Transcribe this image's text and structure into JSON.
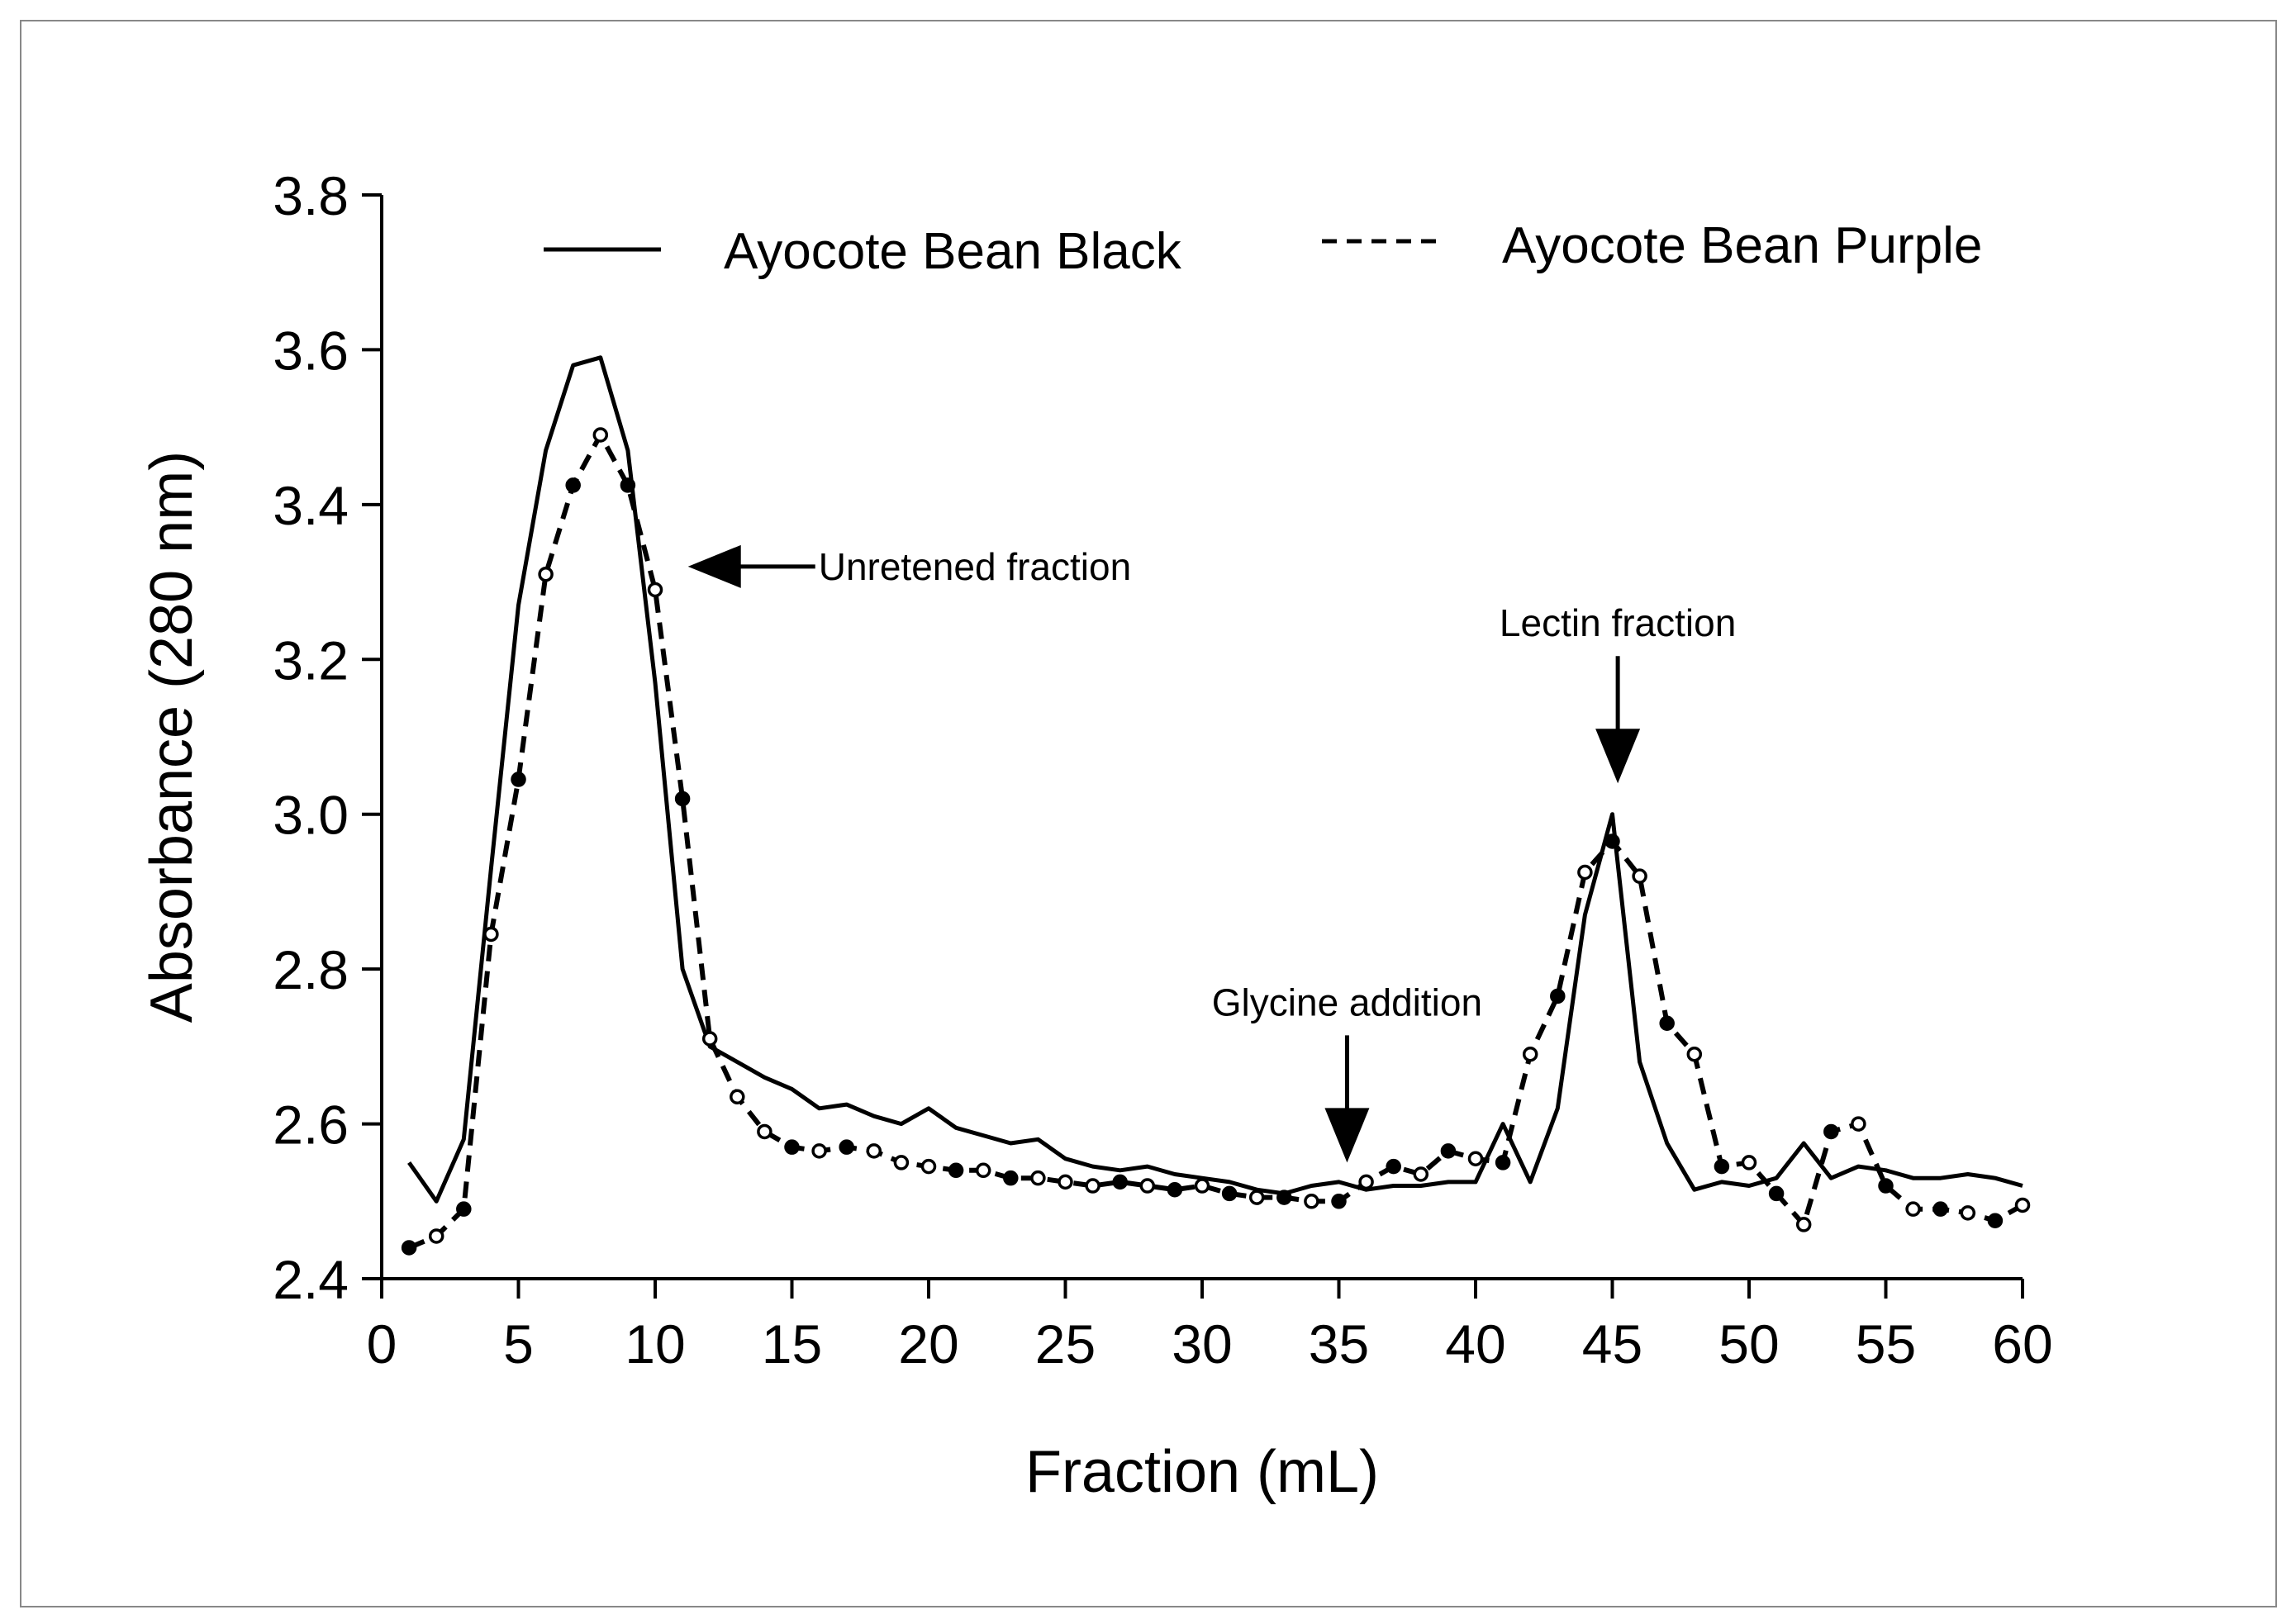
{
  "chart_data": {
    "type": "line",
    "xlabel": "Fraction (mL)",
    "ylabel": "Absorbance (280 nm)",
    "xlim": [
      0,
      60
    ],
    "ylim": [
      2.4,
      3.8
    ],
    "xticks": [
      "0",
      "5",
      "10",
      "15",
      "20",
      "25",
      "30",
      "35",
      "40",
      "45",
      "50",
      "55",
      "60"
    ],
    "yticks": [
      "2.4",
      "2.6",
      "2.8",
      "3.0",
      "3.2",
      "3.4",
      "3.6",
      "3.8"
    ],
    "grid": false,
    "legend_position": "top",
    "series": [
      {
        "name": "Ayocote Bean Black",
        "style": "solid",
        "x": [
          1,
          2,
          3,
          4,
          5,
          6,
          7,
          8,
          9,
          10,
          11,
          12,
          13,
          14,
          15,
          16,
          17,
          18,
          19,
          20,
          21,
          22,
          23,
          24,
          25,
          26,
          27,
          28,
          29,
          30,
          31,
          32,
          33,
          34,
          35,
          36,
          37,
          38,
          39,
          40,
          41,
          42,
          43,
          44,
          45,
          46,
          47,
          48,
          49,
          50,
          51,
          52,
          53,
          54,
          55,
          56,
          57,
          58,
          59,
          60
        ],
        "y": [
          2.55,
          2.5,
          2.58,
          2.93,
          3.27,
          3.47,
          3.58,
          3.59,
          3.47,
          3.17,
          2.8,
          2.7,
          2.68,
          2.66,
          2.645,
          2.62,
          2.625,
          2.61,
          2.6,
          2.62,
          2.595,
          2.585,
          2.575,
          2.58,
          2.555,
          2.545,
          2.54,
          2.545,
          2.535,
          2.53,
          2.525,
          2.515,
          2.51,
          2.52,
          2.525,
          2.515,
          2.52,
          2.52,
          2.525,
          2.525,
          2.6,
          2.525,
          2.62,
          2.87,
          3.0,
          2.68,
          2.575,
          2.515,
          2.525,
          2.52,
          2.53,
          2.575,
          2.53,
          2.545,
          2.54,
          2.53,
          2.53,
          2.535,
          2.53,
          2.52
        ]
      },
      {
        "name": "Ayocote Bean Purple",
        "style": "dashed",
        "x": [
          1,
          2,
          3,
          4,
          5,
          6,
          7,
          8,
          9,
          10,
          11,
          12,
          13,
          14,
          15,
          16,
          17,
          18,
          19,
          20,
          21,
          22,
          23,
          24,
          25,
          26,
          27,
          28,
          29,
          30,
          31,
          32,
          33,
          34,
          35,
          36,
          37,
          38,
          39,
          40,
          41,
          42,
          43,
          44,
          45,
          46,
          47,
          48,
          49,
          50,
          51,
          52,
          53,
          54,
          55,
          56,
          57,
          58,
          59,
          60
        ],
        "y": [
          2.44,
          2.455,
          2.49,
          2.845,
          3.045,
          3.31,
          3.425,
          3.49,
          3.425,
          3.29,
          3.02,
          2.71,
          2.635,
          2.59,
          2.57,
          2.565,
          2.57,
          2.565,
          2.55,
          2.545,
          2.54,
          2.54,
          2.53,
          2.53,
          2.525,
          2.52,
          2.525,
          2.52,
          2.515,
          2.52,
          2.51,
          2.505,
          2.505,
          2.5,
          2.5,
          2.525,
          2.545,
          2.535,
          2.565,
          2.555,
          2.55,
          2.69,
          2.765,
          2.925,
          2.965,
          2.92,
          2.73,
          2.69,
          2.545,
          2.55,
          2.51,
          2.47,
          2.59,
          2.6,
          2.52,
          2.49,
          2.49,
          2.485,
          2.475,
          2.495
        ]
      }
    ],
    "annotations": [
      {
        "text": "Unretened fraction",
        "x": 11.2,
        "y": 3.32,
        "arrow": "left"
      },
      {
        "text": "Glycine addition",
        "x": 35.3,
        "y": 2.55,
        "arrow": "down"
      },
      {
        "text": "Lectin fraction",
        "x": 45.2,
        "y": 3.04,
        "arrow": "down"
      }
    ]
  }
}
